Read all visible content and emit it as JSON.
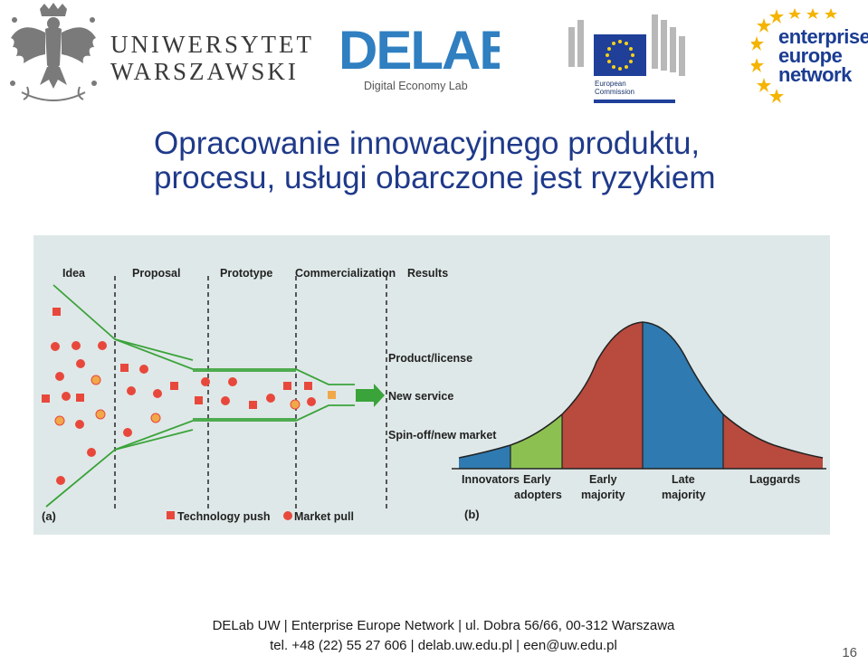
{
  "logos": {
    "university": {
      "line1": "UNIWERSYTET",
      "line2": "WARSZAWSKI",
      "icon": "eagle-crest-icon"
    },
    "delab": {
      "wordmark": "DELAB",
      "subtitle": "Digital Economy Lab",
      "color": "#2f7fc1"
    },
    "ec": {
      "line1": "European",
      "line2": "Commission",
      "flag_color": "#1f3f99",
      "star_color": "#f7d117"
    },
    "een": {
      "line1": "enterprise",
      "line2": "europe",
      "line3": "network",
      "color": "#1a3c93",
      "star_color": "#f4b400"
    }
  },
  "slide": {
    "title_line1": "Opracowanie innowacyjnego produktu,",
    "title_line2": "procesu, usługi obarczone jest ryzykiem",
    "title_color": "#1f3a8a"
  },
  "figure": {
    "panel_a": {
      "label": "(a)",
      "stages": [
        "Idea",
        "Proposal",
        "Prototype",
        "Commercialization",
        "Results"
      ],
      "results": [
        "Product/license",
        "New service",
        "Spin-off/new market"
      ],
      "legend": {
        "technology_push": "Technology push",
        "market_pull": "Market pull"
      },
      "colors": {
        "technology_push": "#e8483c",
        "market_pull": "#e8483c",
        "other": "#f0a848",
        "funnel": "#3aa33a",
        "arrow": "#3aa33a"
      }
    },
    "panel_b": {
      "label": "(b)",
      "segments": [
        {
          "name": "Innovators",
          "color": "#2f7ab0"
        },
        {
          "name": "Early adopters",
          "line1": "Early",
          "line2": "adopters",
          "color": "#8cc152"
        },
        {
          "name": "Early majority",
          "line1": "Early",
          "line2": "majority",
          "color": "#b84a3e"
        },
        {
          "name": "Late majority",
          "line1": "Late",
          "line2": "majority",
          "color": "#2f7ab0"
        },
        {
          "name": "Laggards",
          "color": "#b84a3e"
        }
      ]
    }
  },
  "footer": {
    "line1": "DELab UW | Enterprise Europe Network | ul. Dobra 56/66, 00-312 Warszawa",
    "line2": "tel. +48 (22) 55 27 606 | delab.uw.edu.pl | een@uw.edu.pl"
  },
  "page_number": "16"
}
